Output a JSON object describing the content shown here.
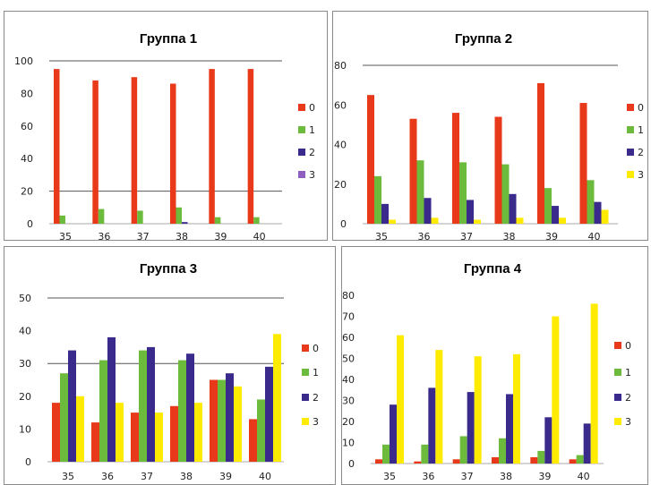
{
  "chart_data": [
    {
      "type": "bar",
      "title": "Группа 1",
      "categories": [
        "35",
        "36",
        "37",
        "38",
        "39",
        "40"
      ],
      "series": [
        {
          "name": "0",
          "color": "#e8391a",
          "values": [
            95,
            88,
            90,
            86,
            95,
            95
          ]
        },
        {
          "name": "1",
          "color": "#6cbb3c",
          "values": [
            5,
            9,
            8,
            10,
            4,
            4
          ]
        },
        {
          "name": "2",
          "color": "#3a2a8c",
          "values": [
            0,
            0,
            0,
            1,
            0,
            0
          ]
        },
        {
          "name": "3",
          "color": "#8e5fbf",
          "values": [
            0,
            0,
            0,
            0,
            0,
            0
          ]
        }
      ],
      "yticks": [
        0,
        20,
        40,
        60,
        80,
        100
      ],
      "ylim": [
        0,
        100
      ],
      "gridlines": [
        20,
        100
      ],
      "legend": "right"
    },
    {
      "type": "bar",
      "title": "Группа 2",
      "categories": [
        "35",
        "36",
        "37",
        "38",
        "39",
        "40"
      ],
      "series": [
        {
          "name": "0",
          "color": "#e8391a",
          "values": [
            65,
            53,
            56,
            54,
            71,
            61
          ]
        },
        {
          "name": "1",
          "color": "#6cbb3c",
          "values": [
            24,
            32,
            31,
            30,
            18,
            22
          ]
        },
        {
          "name": "2",
          "color": "#3a2a8c",
          "values": [
            10,
            13,
            12,
            15,
            9,
            11
          ]
        },
        {
          "name": "3",
          "color": "#ffeb00",
          "values": [
            2,
            3,
            2,
            3,
            3,
            7
          ]
        }
      ],
      "yticks": [
        0,
        20,
        40,
        60,
        80
      ],
      "ylim": [
        0,
        80
      ],
      "gridlines": [
        80
      ],
      "legend": "right"
    },
    {
      "type": "bar",
      "title": "Группа 3",
      "categories": [
        "35",
        "36",
        "37",
        "38",
        "39",
        "40"
      ],
      "series": [
        {
          "name": "0",
          "color": "#e8391a",
          "values": [
            18,
            12,
            15,
            17,
            25,
            13
          ]
        },
        {
          "name": "1",
          "color": "#6cbb3c",
          "values": [
            27,
            31,
            34,
            31,
            25,
            19
          ]
        },
        {
          "name": "2",
          "color": "#3a2a8c",
          "values": [
            34,
            38,
            35,
            33,
            27,
            29
          ]
        },
        {
          "name": "3",
          "color": "#ffeb00",
          "values": [
            20,
            18,
            15,
            18,
            23,
            39
          ]
        }
      ],
      "yticks": [
        0,
        10,
        20,
        30,
        40,
        50
      ],
      "ylim": [
        0,
        50
      ],
      "gridlines": [
        30,
        50
      ],
      "legend": "right"
    },
    {
      "type": "bar",
      "title": "Группа 4",
      "categories": [
        "35",
        "36",
        "37",
        "38",
        "39",
        "40"
      ],
      "series": [
        {
          "name": "0",
          "color": "#e8391a",
          "values": [
            2,
            1,
            2,
            3,
            3,
            2
          ]
        },
        {
          "name": "1",
          "color": "#6cbb3c",
          "values": [
            9,
            9,
            13,
            12,
            6,
            4
          ]
        },
        {
          "name": "2",
          "color": "#3a2a8c",
          "values": [
            28,
            36,
            34,
            33,
            22,
            19
          ]
        },
        {
          "name": "3",
          "color": "#ffeb00",
          "values": [
            61,
            54,
            51,
            52,
            70,
            76
          ]
        }
      ],
      "yticks": [
        0,
        10,
        20,
        30,
        40,
        50,
        60,
        70,
        80
      ],
      "ylim": [
        0,
        80
      ],
      "gridlines": [],
      "legend": "right"
    }
  ]
}
